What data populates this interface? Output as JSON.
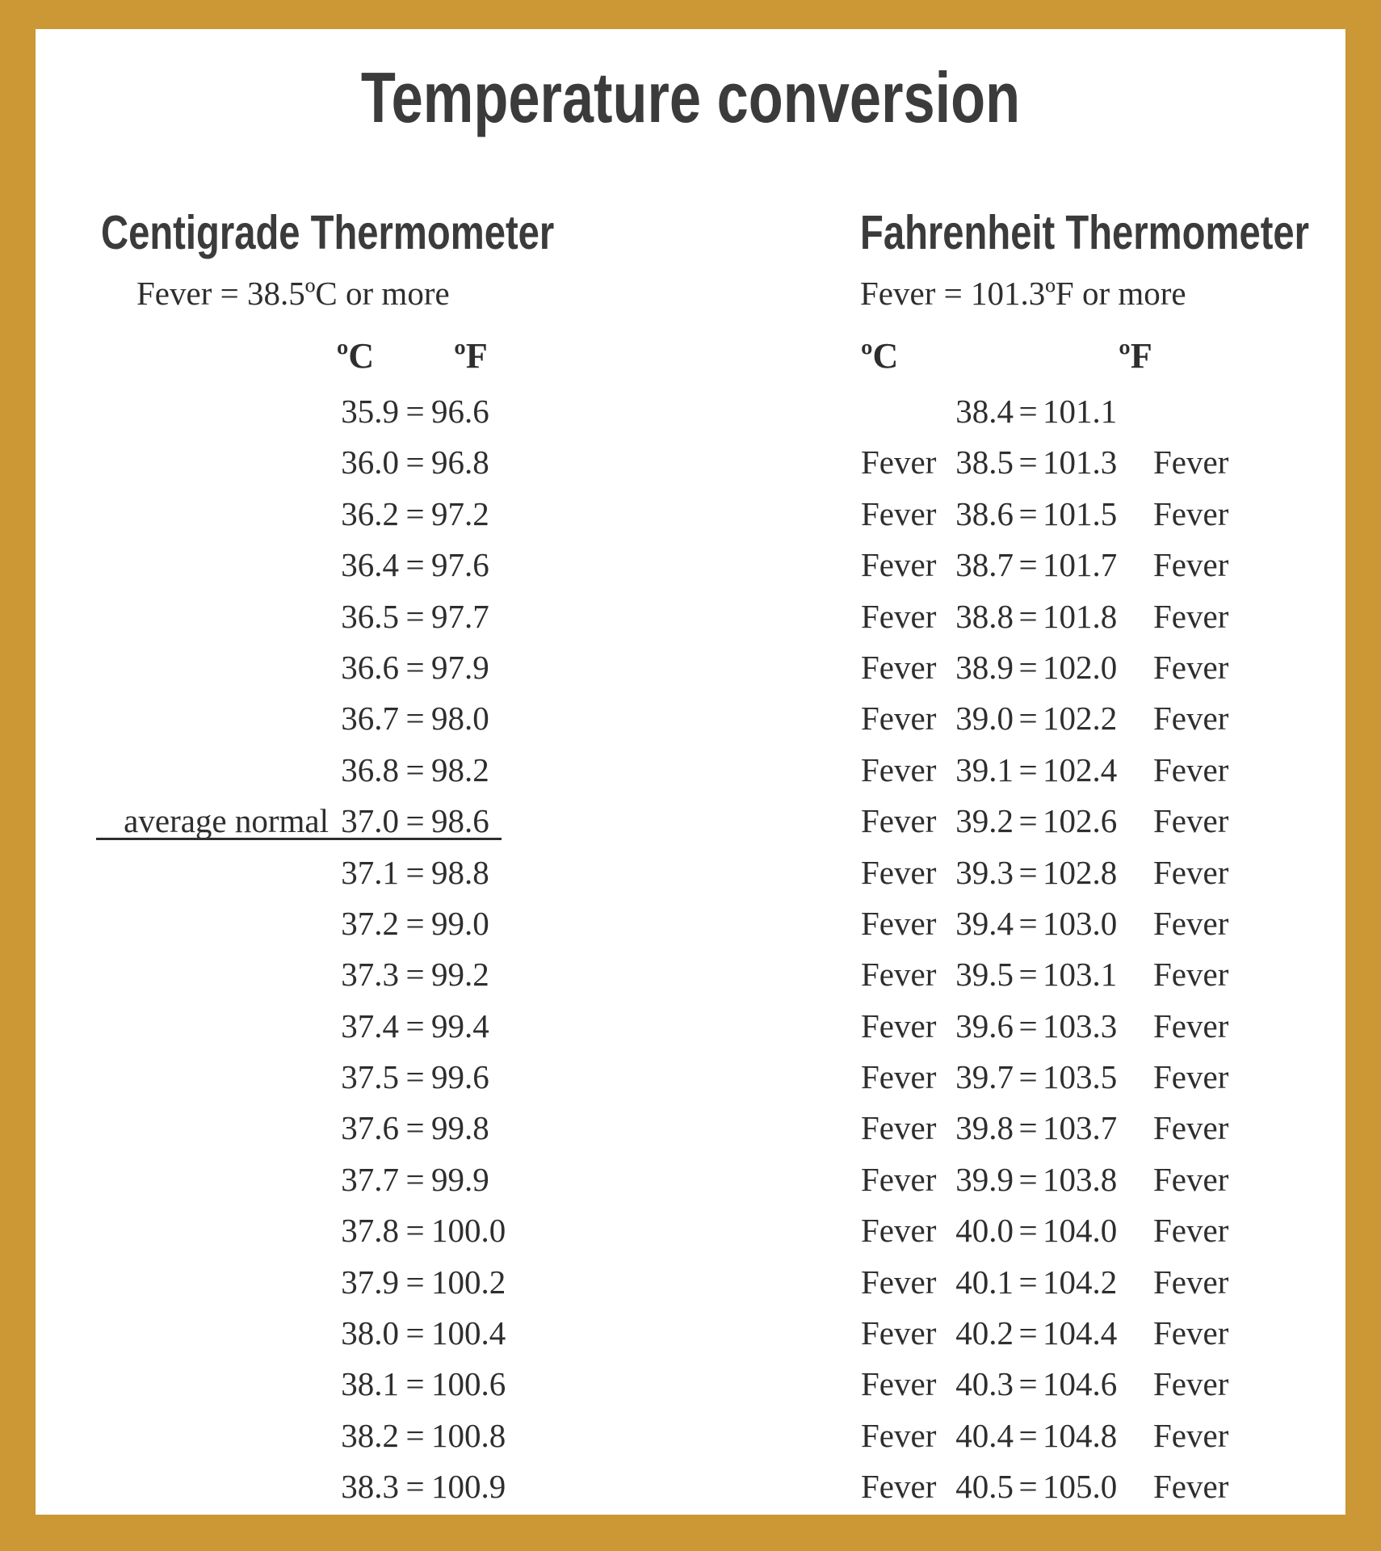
{
  "title": "Temperature conversion",
  "equals": "=",
  "colors": {
    "border": "#CB9835",
    "page_background": "#FFFFFF",
    "heading_text": "#3B3B3B",
    "body_text": "#2E2E2E"
  },
  "left": {
    "heading": "Centigrade Thermometer",
    "fever_note": "Fever = 38.5ºC or more",
    "col_c": "ºC",
    "col_f": "ºF",
    "rows": [
      {
        "label": "",
        "c": "35.9",
        "f": "96.6"
      },
      {
        "label": "",
        "c": "36.0",
        "f": "96.8"
      },
      {
        "label": "",
        "c": "36.2",
        "f": "97.2"
      },
      {
        "label": "",
        "c": "36.4",
        "f": "97.6"
      },
      {
        "label": "",
        "c": "36.5",
        "f": "97.7"
      },
      {
        "label": "",
        "c": "36.6",
        "f": "97.9"
      },
      {
        "label": "",
        "c": "36.7",
        "f": "98.0"
      },
      {
        "label": "",
        "c": "36.8",
        "f": "98.2"
      },
      {
        "label": "average normal",
        "c": "37.0",
        "f": "98.6",
        "underline": true
      },
      {
        "label": "",
        "c": "37.1",
        "f": "98.8"
      },
      {
        "label": "",
        "c": "37.2",
        "f": "99.0"
      },
      {
        "label": "",
        "c": "37.3",
        "f": "99.2"
      },
      {
        "label": "",
        "c": "37.4",
        "f": "99.4"
      },
      {
        "label": "",
        "c": "37.5",
        "f": "99.6"
      },
      {
        "label": "",
        "c": "37.6",
        "f": "99.8"
      },
      {
        "label": "",
        "c": "37.7",
        "f": "99.9"
      },
      {
        "label": "",
        "c": "37.8",
        "f": "100.0"
      },
      {
        "label": "",
        "c": "37.9",
        "f": "100.2"
      },
      {
        "label": "",
        "c": "38.0",
        "f": "100.4"
      },
      {
        "label": "",
        "c": "38.1",
        "f": "100.6"
      },
      {
        "label": "",
        "c": "38.2",
        "f": "100.8"
      },
      {
        "label": "",
        "c": "38.3",
        "f": "100.9"
      }
    ]
  },
  "right": {
    "heading": "Fahrenheit Thermometer",
    "fever_note": "Fever = 101.3ºF or more",
    "col_c": "ºC",
    "col_f": "ºF",
    "rows": [
      {
        "prefix": "",
        "c": "38.4",
        "f": "101.1",
        "suffix": ""
      },
      {
        "prefix": "Fever",
        "c": "38.5",
        "f": "101.3",
        "suffix": "Fever"
      },
      {
        "prefix": "Fever",
        "c": "38.6",
        "f": "101.5",
        "suffix": "Fever"
      },
      {
        "prefix": "Fever",
        "c": "38.7",
        "f": "101.7",
        "suffix": "Fever"
      },
      {
        "prefix": "Fever",
        "c": "38.8",
        "f": "101.8",
        "suffix": "Fever"
      },
      {
        "prefix": "Fever",
        "c": "38.9",
        "f": "102.0",
        "suffix": "Fever"
      },
      {
        "prefix": "Fever",
        "c": "39.0",
        "f": "102.2",
        "suffix": "Fever"
      },
      {
        "prefix": "Fever",
        "c": "39.1",
        "f": "102.4",
        "suffix": "Fever"
      },
      {
        "prefix": "Fever",
        "c": "39.2",
        "f": "102.6",
        "suffix": "Fever"
      },
      {
        "prefix": "Fever",
        "c": "39.3",
        "f": "102.8",
        "suffix": "Fever"
      },
      {
        "prefix": "Fever",
        "c": "39.4",
        "f": "103.0",
        "suffix": "Fever"
      },
      {
        "prefix": "Fever",
        "c": "39.5",
        "f": "103.1",
        "suffix": "Fever"
      },
      {
        "prefix": "Fever",
        "c": "39.6",
        "f": "103.3",
        "suffix": "Fever"
      },
      {
        "prefix": "Fever",
        "c": "39.7",
        "f": "103.5",
        "suffix": "Fever"
      },
      {
        "prefix": "Fever",
        "c": "39.8",
        "f": "103.7",
        "suffix": "Fever"
      },
      {
        "prefix": "Fever",
        "c": "39.9",
        "f": "103.8",
        "suffix": "Fever"
      },
      {
        "prefix": "Fever",
        "c": "40.0",
        "f": "104.0",
        "suffix": "Fever"
      },
      {
        "prefix": "Fever",
        "c": "40.1",
        "f": "104.2",
        "suffix": "Fever"
      },
      {
        "prefix": "Fever",
        "c": "40.2",
        "f": "104.4",
        "suffix": "Fever"
      },
      {
        "prefix": "Fever",
        "c": "40.3",
        "f": "104.6",
        "suffix": "Fever"
      },
      {
        "prefix": "Fever",
        "c": "40.4",
        "f": "104.8",
        "suffix": "Fever"
      },
      {
        "prefix": "Fever",
        "c": "40.5",
        "f": "105.0",
        "suffix": "Fever"
      }
    ]
  }
}
